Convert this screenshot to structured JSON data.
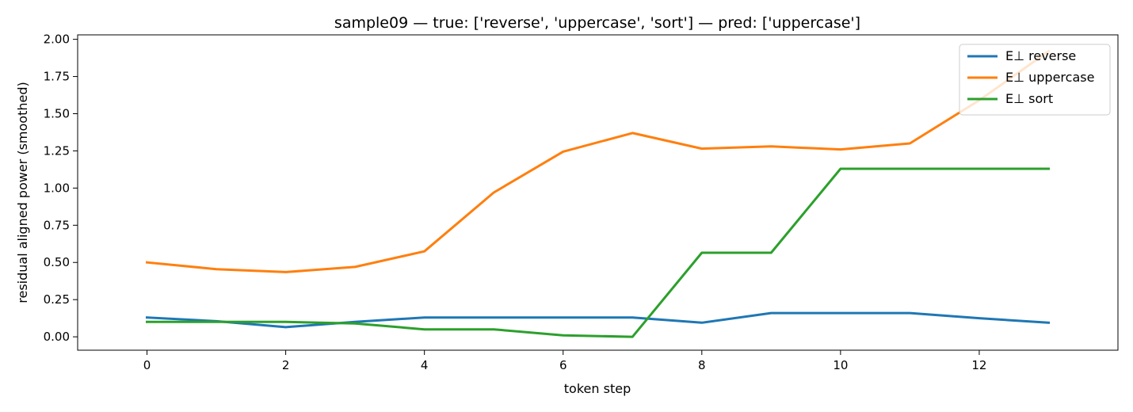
{
  "chart_data": {
    "type": "line",
    "title": "sample09 — true: ['reverse', 'uppercase', 'sort'] — pred: ['uppercase']",
    "xlabel": "token step",
    "ylabel": "residual aligned power (smoothed)",
    "xlim": [
      -1,
      14
    ],
    "ylim": [
      -0.09,
      2.03
    ],
    "xticks": [
      0,
      2,
      4,
      6,
      8,
      10,
      12
    ],
    "yticks": [
      0.0,
      0.25,
      0.5,
      0.75,
      1.0,
      1.25,
      1.5,
      1.75,
      2.0
    ],
    "ytick_labels": [
      "0.00",
      "0.25",
      "0.50",
      "0.75",
      "1.00",
      "1.25",
      "1.50",
      "1.75",
      "2.00"
    ],
    "legend_position": "top-right",
    "x": [
      0,
      1,
      2,
      3,
      4,
      5,
      6,
      7,
      8,
      9,
      10,
      11,
      12,
      13
    ],
    "series": [
      {
        "name": "E⊥ reverse",
        "color": "#1f77b4",
        "values": [
          0.13,
          0.105,
          0.065,
          0.1,
          0.13,
          0.13,
          0.13,
          0.13,
          0.095,
          0.16,
          0.16,
          0.16,
          0.125,
          0.095
        ]
      },
      {
        "name": "E⊥ uppercase",
        "color": "#ff7f0e",
        "values": [
          0.5,
          0.455,
          0.435,
          0.47,
          0.575,
          0.97,
          1.245,
          1.37,
          1.265,
          1.28,
          1.26,
          1.3,
          1.59,
          1.92
        ]
      },
      {
        "name": "E⊥ sort",
        "color": "#2ca02c",
        "values": [
          0.1,
          0.1,
          0.1,
          0.09,
          0.05,
          0.05,
          0.01,
          0.0,
          0.565,
          0.565,
          1.13,
          1.13,
          1.13,
          1.13
        ]
      }
    ]
  }
}
